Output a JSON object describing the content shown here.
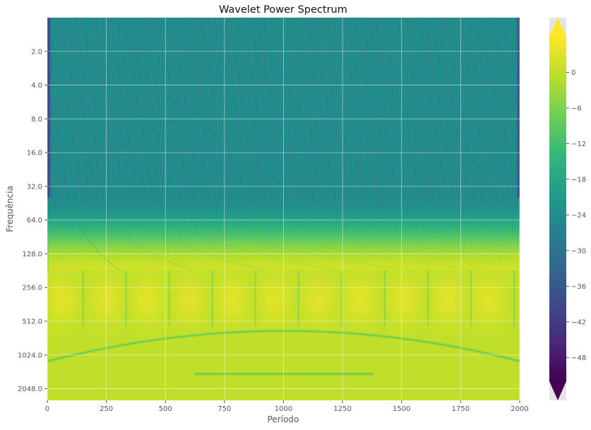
{
  "chart_data": {
    "type": "heatmap",
    "title": "Wavelet Power Spectrum",
    "xlabel": "Período",
    "ylabel": "Frequência",
    "x_ticks": [
      0,
      250,
      500,
      750,
      1000,
      1250,
      1500,
      1750,
      2000
    ],
    "xlim": [
      0,
      2000
    ],
    "y_ticks": [
      2.0,
      4.0,
      8.0,
      16.0,
      32.0,
      64.0,
      128.0,
      256.0,
      512.0,
      1024.0,
      2048.0
    ],
    "y_tick_labels": [
      "2.0",
      "4.0",
      "8.0",
      "16.0",
      "32.0",
      "64.0",
      "128.0",
      "256.0",
      "512.0",
      "1024.0",
      "2048.0"
    ],
    "y_scale": "log2",
    "y_inverted": true,
    "ylim": [
      1.0,
      2600.0
    ],
    "colormap": "viridis",
    "colorbar": {
      "ticks": [
        0,
        -6,
        -12,
        -18,
        -24,
        -30,
        -36,
        -42,
        -48
      ],
      "tick_labels": [
        "0",
        "−6",
        "−12",
        "−18",
        "−24",
        "−30",
        "−36",
        "−42",
        "−48"
      ],
      "range": [
        -52,
        6
      ],
      "extend": "both"
    },
    "grid": true,
    "background": "#e5e5e5",
    "colors": {
      "grid": "#ffffff",
      "cmap_stops": [
        "#440154",
        "#482878",
        "#3e4989",
        "#31688e",
        "#26828e",
        "#1f9e89",
        "#35b779",
        "#6ece58",
        "#b5de2b",
        "#fde725"
      ]
    },
    "power_structure": {
      "high_power_band": {
        "period_range": [
          180,
          2048
        ],
        "level": 2
      },
      "low_power_region": {
        "period_range": [
          1.0,
          40.0
        ],
        "level": -24
      },
      "bright_blob_centers_x": [
        60,
        250,
        420,
        600,
        780,
        960,
        1145,
        1325,
        1510,
        1695,
        1870
      ],
      "bright_blob_center_period": 330,
      "edge_columns_x": [
        0,
        2000
      ],
      "edge_level": -44
    }
  }
}
